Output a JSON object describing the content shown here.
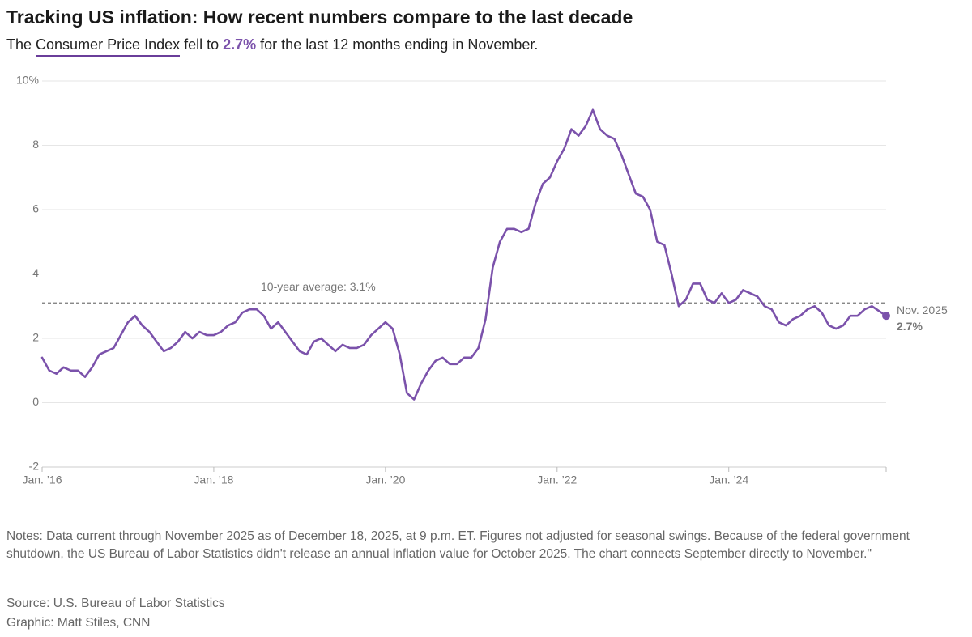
{
  "chart_data": {
    "type": "line",
    "title": "Tracking US inflation: How recent numbers compare to the last decade",
    "subtitle": {
      "parts": [
        "The ",
        "Consumer Price Index",
        " fell to ",
        "2.7%",
        " for the last 12 months ending in November."
      ]
    },
    "x": [
      "2016-01",
      "2016-02",
      "2016-03",
      "2016-04",
      "2016-05",
      "2016-06",
      "2016-07",
      "2016-08",
      "2016-09",
      "2016-10",
      "2016-11",
      "2016-12",
      "2017-01",
      "2017-02",
      "2017-03",
      "2017-04",
      "2017-05",
      "2017-06",
      "2017-07",
      "2017-08",
      "2017-09",
      "2017-10",
      "2017-11",
      "2017-12",
      "2018-01",
      "2018-02",
      "2018-03",
      "2018-04",
      "2018-05",
      "2018-06",
      "2018-07",
      "2018-08",
      "2018-09",
      "2018-10",
      "2018-11",
      "2018-12",
      "2019-01",
      "2019-02",
      "2019-03",
      "2019-04",
      "2019-05",
      "2019-06",
      "2019-07",
      "2019-08",
      "2019-09",
      "2019-10",
      "2019-11",
      "2019-12",
      "2020-01",
      "2020-02",
      "2020-03",
      "2020-04",
      "2020-05",
      "2020-06",
      "2020-07",
      "2020-08",
      "2020-09",
      "2020-10",
      "2020-11",
      "2020-12",
      "2021-01",
      "2021-02",
      "2021-03",
      "2021-04",
      "2021-05",
      "2021-06",
      "2021-07",
      "2021-08",
      "2021-09",
      "2021-10",
      "2021-11",
      "2021-12",
      "2022-01",
      "2022-02",
      "2022-03",
      "2022-04",
      "2022-05",
      "2022-06",
      "2022-07",
      "2022-08",
      "2022-09",
      "2022-10",
      "2022-11",
      "2022-12",
      "2023-01",
      "2023-02",
      "2023-03",
      "2023-04",
      "2023-05",
      "2023-06",
      "2023-07",
      "2023-08",
      "2023-09",
      "2023-10",
      "2023-11",
      "2023-12",
      "2024-01",
      "2024-02",
      "2024-03",
      "2024-04",
      "2024-05",
      "2024-06",
      "2024-07",
      "2024-08",
      "2024-09",
      "2024-10",
      "2024-11",
      "2024-12",
      "2025-01",
      "2025-02",
      "2025-03",
      "2025-04",
      "2025-05",
      "2025-06",
      "2025-07",
      "2025-08",
      "2025-09",
      "2025-11"
    ],
    "series": [
      {
        "name": "CPI",
        "color": "#7b52ab",
        "values": [
          1.4,
          1.0,
          0.9,
          1.1,
          1.0,
          1.0,
          0.8,
          1.1,
          1.5,
          1.6,
          1.7,
          2.1,
          2.5,
          2.7,
          2.4,
          2.2,
          1.9,
          1.6,
          1.7,
          1.9,
          2.2,
          2.0,
          2.2,
          2.1,
          2.1,
          2.2,
          2.4,
          2.5,
          2.8,
          2.9,
          2.9,
          2.7,
          2.3,
          2.5,
          2.2,
          1.9,
          1.6,
          1.5,
          1.9,
          2.0,
          1.8,
          1.6,
          1.8,
          1.7,
          1.7,
          1.8,
          2.1,
          2.3,
          2.5,
          2.3,
          1.5,
          0.3,
          0.1,
          0.6,
          1.0,
          1.3,
          1.4,
          1.2,
          1.2,
          1.4,
          1.4,
          1.7,
          2.6,
          4.2,
          5.0,
          5.4,
          5.4,
          5.3,
          5.4,
          6.2,
          6.8,
          7.0,
          7.5,
          7.9,
          8.5,
          8.3,
          8.6,
          9.1,
          8.5,
          8.3,
          8.2,
          7.7,
          7.1,
          6.5,
          6.4,
          6.0,
          5.0,
          4.9,
          4.0,
          3.0,
          3.2,
          3.7,
          3.7,
          3.2,
          3.1,
          3.4,
          3.1,
          3.2,
          3.5,
          3.4,
          3.3,
          3.0,
          2.9,
          2.5,
          2.4,
          2.6,
          2.7,
          2.9,
          3.0,
          2.8,
          2.4,
          2.3,
          2.4,
          2.7,
          2.7,
          2.9,
          3.0,
          2.7
        ]
      }
    ],
    "xlim": [
      "2016-01",
      "2025-11"
    ],
    "xticks": [
      {
        "value": "2016-01",
        "label": "Jan. ’16"
      },
      {
        "value": "2018-01",
        "label": "Jan. ’18"
      },
      {
        "value": "2020-01",
        "label": "Jan. ’20"
      },
      {
        "value": "2022-01",
        "label": "Jan. ’22"
      },
      {
        "value": "2024-01",
        "label": "Jan. ’24"
      }
    ],
    "ylim": [
      -2,
      10
    ],
    "yticks": [
      -2,
      0,
      2,
      4,
      6,
      8,
      {
        "value": 10,
        "label": "10%"
      }
    ],
    "grid": true,
    "average": {
      "value": 3.1,
      "label": "10-year average: 3.1%"
    },
    "end_annotation": {
      "label": "Nov. 2025",
      "value_label": "2.7%"
    },
    "notes": "Notes: Data current through November 2025 as of December 18, 2025, at 9 p.m. ET. Figures not adjusted for seasonal swings. Because of the federal government shutdown, the US Bureau of Labor Statistics didn't release an annual inflation value for October 2025. The chart connects September directly to November.\"",
    "source": "Source: U.S. Bureau of Labor Statistics",
    "credit": "Graphic: Matt Stiles, CNN"
  }
}
